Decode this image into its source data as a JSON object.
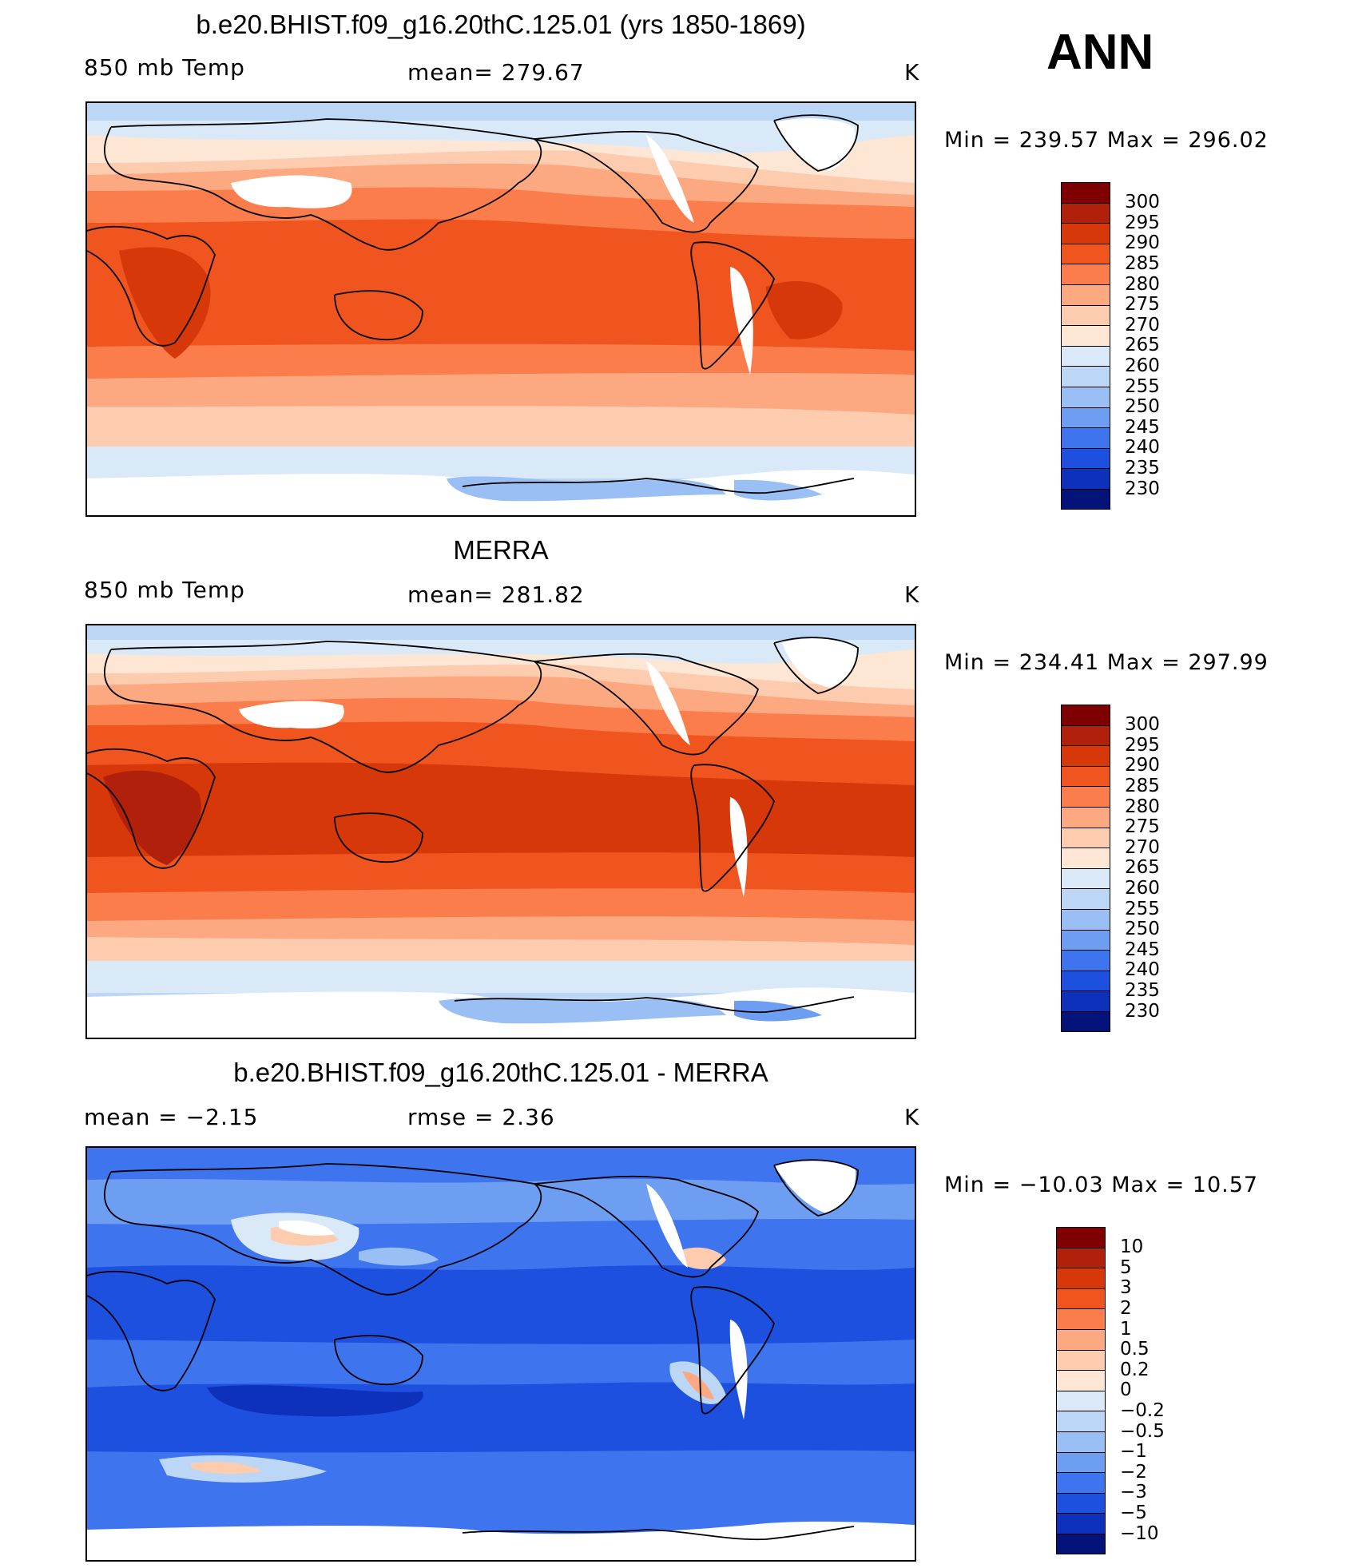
{
  "header": {
    "season": "ANN"
  },
  "panels": [
    {
      "title": "b.e20.BHIST.f09_g16.20thC.125.01 (yrs 1850-1869)",
      "left_label": "850 mb Temp",
      "center_label": "mean= 279.67",
      "units": "K",
      "minmax": "Min = 239.57 Max = 296.02",
      "colorbar_labels": [
        "300",
        "295",
        "290",
        "285",
        "280",
        "275",
        "270",
        "265",
        "260",
        "255",
        "250",
        "245",
        "240",
        "235",
        "230"
      ]
    },
    {
      "title": "MERRA",
      "left_label": "850 mb Temp",
      "center_label": "mean= 281.82",
      "units": "K",
      "minmax": "Min = 234.41 Max = 297.99",
      "colorbar_labels": [
        "300",
        "295",
        "290",
        "285",
        "280",
        "275",
        "270",
        "265",
        "260",
        "255",
        "250",
        "245",
        "240",
        "235",
        "230"
      ]
    },
    {
      "title": "b.e20.BHIST.f09_g16.20thC.125.01 - MERRA",
      "left_label": "mean =   −2.15",
      "center_label": "rmse =    2.36",
      "units": "K",
      "minmax": "Min = −10.03 Max =   10.57",
      "colorbar_labels": [
        "10",
        "5",
        "3",
        "2",
        "1",
        "0.5",
        "0.2",
        "0",
        "−0.2",
        "−0.5",
        "−1",
        "−2",
        "−3",
        "−5",
        "−10"
      ]
    }
  ],
  "colors": {
    "temp_scale": [
      "#7f0000",
      "#b0200a",
      "#d7380a",
      "#f0541f",
      "#fa7d4b",
      "#fca880",
      "#fdcbae",
      "#fde6d4",
      "#dae9f8",
      "#bcd6f6",
      "#9abff5",
      "#6e9ef2",
      "#3f74ef",
      "#1e50df",
      "#0e31bb",
      "#03137a"
    ],
    "diff_scale": [
      "#7f0000",
      "#b0200a",
      "#d7380a",
      "#f0541f",
      "#fa7d4b",
      "#fca880",
      "#fdcbae",
      "#fde6d4",
      "#dae9f8",
      "#bcd6f6",
      "#9abff5",
      "#6e9ef2",
      "#3f74ef",
      "#1e50df",
      "#0e31bb",
      "#03137a"
    ],
    "land_mask": "#ffffff",
    "coastline": "#000000"
  }
}
